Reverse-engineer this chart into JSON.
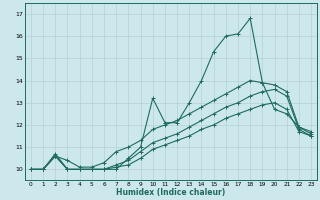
{
  "xlabel": "Humidex (Indice chaleur)",
  "ylabel": "",
  "background_color": "#cde8ec",
  "grid_color": "#b8d4d8",
  "line_color": "#1e6b5e",
  "xlim": [
    -0.5,
    23.5
  ],
  "ylim": [
    9.5,
    17.5
  ],
  "xticks": [
    0,
    1,
    2,
    3,
    4,
    5,
    6,
    7,
    8,
    9,
    10,
    11,
    12,
    13,
    14,
    15,
    16,
    17,
    18,
    19,
    20,
    21,
    22,
    23
  ],
  "yticks": [
    10,
    11,
    12,
    13,
    14,
    15,
    16,
    17
  ],
  "series": [
    {
      "x": [
        0,
        1,
        2,
        3,
        4,
        5,
        6,
        7,
        8,
        9,
        10,
        11,
        12,
        13,
        14,
        15,
        16,
        17,
        18,
        19,
        20,
        21,
        22,
        23
      ],
      "y": [
        10,
        10,
        10.7,
        10,
        10,
        10,
        10,
        10,
        10.5,
        11,
        13.2,
        12.1,
        12.1,
        13,
        14,
        15.3,
        16,
        16.1,
        16.8,
        13.9,
        12.7,
        12.5,
        11.9,
        11.7
      ]
    },
    {
      "x": [
        0,
        1,
        2,
        3,
        4,
        5,
        6,
        7,
        8,
        9,
        10,
        11,
        12,
        13,
        14,
        15,
        16,
        17,
        18,
        19,
        20,
        21,
        22,
        23
      ],
      "y": [
        10,
        10,
        10.6,
        10.4,
        10.1,
        10.1,
        10.3,
        10.8,
        11.0,
        11.3,
        11.8,
        12.0,
        12.2,
        12.5,
        12.8,
        13.1,
        13.4,
        13.7,
        14.0,
        13.9,
        13.8,
        13.5,
        11.9,
        11.6
      ]
    },
    {
      "x": [
        0,
        1,
        2,
        3,
        4,
        5,
        6,
        7,
        8,
        9,
        10,
        11,
        12,
        13,
        14,
        15,
        16,
        17,
        18,
        19,
        20,
        21,
        22,
        23
      ],
      "y": [
        10,
        10,
        10.6,
        10.0,
        10.0,
        10.0,
        10.0,
        10.2,
        10.4,
        10.8,
        11.2,
        11.4,
        11.6,
        11.9,
        12.2,
        12.5,
        12.8,
        13.0,
        13.3,
        13.5,
        13.6,
        13.3,
        11.8,
        11.5
      ]
    },
    {
      "x": [
        0,
        1,
        2,
        3,
        4,
        5,
        6,
        7,
        8,
        9,
        10,
        11,
        12,
        13,
        14,
        15,
        16,
        17,
        18,
        19,
        20,
        21,
        22,
        23
      ],
      "y": [
        10,
        10,
        10.6,
        10.0,
        10.0,
        10.0,
        10.0,
        10.1,
        10.2,
        10.5,
        10.9,
        11.1,
        11.3,
        11.5,
        11.8,
        12.0,
        12.3,
        12.5,
        12.7,
        12.9,
        13.0,
        12.7,
        11.7,
        11.5
      ]
    }
  ]
}
